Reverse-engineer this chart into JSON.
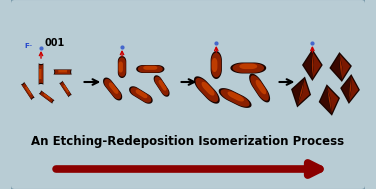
{
  "background_color": "#b8ccd4",
  "border_color": "#7a9aaa",
  "title_text": "An Etching-Redeposition Isomerization Process",
  "title_fontsize": 8.5,
  "arrow_color": "#8b0000",
  "label_001": "001",
  "label_F": "F",
  "step_arrow_color": "#111111",
  "rod_dark": "#1a0400",
  "rod_mid": "#8b2000",
  "rod_bright": "#cc4400",
  "rod_highlight": "#e06030"
}
